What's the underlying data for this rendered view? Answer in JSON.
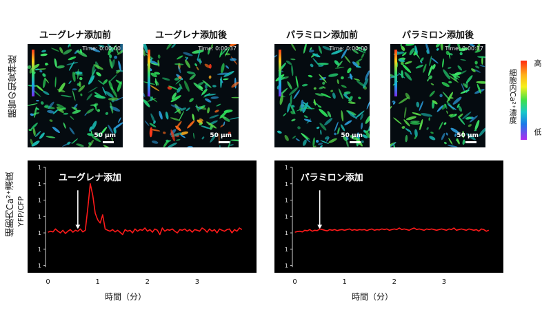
{
  "row_label_neurons": "腸管の知覚神経",
  "columns": [
    {
      "title": "ユーグレナ添加前",
      "time": "Time: 0:00:00",
      "scale": "50 µm"
    },
    {
      "title": "ユーグレナ添加後",
      "time": "Time: 0:00:37",
      "scale": "50 µm"
    },
    {
      "title": "パラミロン添加前",
      "time": "Time: 0:00:00",
      "scale": "50 µm"
    },
    {
      "title": "パラミロン添加後",
      "time": "Time: 0:00:37",
      "scale": "50 µm"
    }
  ],
  "colorbar": {
    "label": "細胞内Ca²⁺濃度",
    "high": "高",
    "low": "低"
  },
  "y_axis": {
    "main": "細胞内Ca²⁺濃度",
    "sub": "YFP/CFP"
  },
  "chart_data": [
    {
      "type": "line",
      "annotation": "ユーグレナ添加",
      "annotation_x": 0.6,
      "xlabel": "時間（分）",
      "x_ticks": [
        "0",
        "1",
        "2",
        "3"
      ],
      "y_ticks": [
        "1",
        "1",
        "1",
        "1",
        "1",
        "1",
        "1",
        "1"
      ],
      "xlim": [
        -0.05,
        4.0
      ],
      "ylim": [
        -0.05,
        3.0
      ],
      "series": [
        {
          "color": "#ff1a1a",
          "x": [
            0.0,
            0.05,
            0.1,
            0.15,
            0.2,
            0.25,
            0.3,
            0.35,
            0.4,
            0.45,
            0.5,
            0.55,
            0.6,
            0.65,
            0.7,
            0.75,
            0.8,
            0.85,
            0.9,
            0.95,
            1.0,
            1.05,
            1.1,
            1.15,
            1.2,
            1.25,
            1.3,
            1.35,
            1.4,
            1.45,
            1.5,
            1.55,
            1.6,
            1.65,
            1.7,
            1.75,
            1.8,
            1.85,
            1.9,
            1.95,
            2.0,
            2.05,
            2.1,
            2.15,
            2.2,
            2.25,
            2.3,
            2.35,
            2.4,
            2.45,
            2.5,
            2.55,
            2.6,
            2.65,
            2.7,
            2.75,
            2.8,
            2.85,
            2.9,
            2.95,
            3.0,
            3.05,
            3.1,
            3.15,
            3.2,
            3.25,
            3.3,
            3.35,
            3.4,
            3.45,
            3.5,
            3.55,
            3.6,
            3.65,
            3.7,
            3.75,
            3.8,
            3.85,
            3.9
          ],
          "y": [
            1.02,
            1.05,
            1.03,
            1.12,
            1.05,
            1.0,
            1.08,
            0.98,
            1.05,
            1.1,
            1.02,
            1.08,
            1.05,
            1.12,
            1.03,
            1.08,
            1.75,
            2.5,
            2.15,
            1.6,
            1.4,
            1.3,
            1.55,
            1.12,
            1.08,
            1.05,
            1.1,
            1.03,
            1.08,
            1.02,
            0.95,
            1.1,
            1.05,
            1.08,
            1.0,
            1.12,
            1.05,
            1.1,
            1.08,
            1.15,
            1.05,
            1.1,
            1.02,
            1.12,
            1.08,
            0.95,
            1.15,
            1.05,
            1.1,
            1.08,
            1.12,
            1.05,
            1.0,
            1.1,
            1.08,
            1.12,
            1.05,
            1.1,
            1.02,
            1.1,
            1.08,
            1.05,
            1.15,
            1.1,
            1.02,
            1.12,
            1.05,
            1.1,
            1.0,
            1.12,
            1.08,
            1.05,
            1.1,
            1.12,
            1.0,
            1.1,
            1.05,
            1.15,
            1.1
          ]
        }
      ]
    },
    {
      "type": "line",
      "annotation": "パラミロン添加",
      "annotation_x": 0.5,
      "xlabel": "時間（分）",
      "x_ticks": [
        "0",
        "1",
        "2",
        "3"
      ],
      "y_ticks": [
        "1",
        "1",
        "1",
        "1",
        "1",
        "1",
        "1",
        "1"
      ],
      "xlim": [
        -0.05,
        4.0
      ],
      "ylim": [
        -0.05,
        3.0
      ],
      "series": [
        {
          "color": "#ff1a1a",
          "x": [
            0.0,
            0.05,
            0.1,
            0.15,
            0.2,
            0.25,
            0.3,
            0.35,
            0.4,
            0.45,
            0.5,
            0.55,
            0.6,
            0.65,
            0.7,
            0.75,
            0.8,
            0.85,
            0.9,
            0.95,
            1.0,
            1.05,
            1.1,
            1.15,
            1.2,
            1.25,
            1.3,
            1.35,
            1.4,
            1.45,
            1.5,
            1.55,
            1.6,
            1.65,
            1.7,
            1.75,
            1.8,
            1.85,
            1.9,
            1.95,
            2.0,
            2.05,
            2.1,
            2.15,
            2.2,
            2.25,
            2.3,
            2.35,
            2.4,
            2.45,
            2.5,
            2.55,
            2.6,
            2.65,
            2.7,
            2.75,
            2.8,
            2.85,
            2.9,
            2.95,
            3.0,
            3.05,
            3.1,
            3.15,
            3.2,
            3.25,
            3.3,
            3.35,
            3.4,
            3.45,
            3.5,
            3.55,
            3.6,
            3.65,
            3.7,
            3.75,
            3.8,
            3.85,
            3.9
          ],
          "y": [
            1.02,
            1.04,
            1.05,
            1.03,
            1.08,
            1.06,
            1.1,
            1.05,
            1.08,
            1.07,
            1.12,
            1.1,
            1.08,
            1.06,
            1.1,
            1.08,
            1.1,
            1.07,
            1.09,
            1.1,
            1.08,
            1.1,
            1.12,
            1.08,
            1.1,
            1.08,
            1.1,
            1.09,
            1.1,
            1.07,
            1.1,
            1.12,
            1.08,
            1.1,
            1.09,
            1.12,
            1.1,
            1.12,
            1.08,
            1.1,
            1.12,
            1.1,
            1.15,
            1.1,
            1.12,
            1.1,
            1.08,
            1.12,
            1.15,
            1.1,
            1.12,
            1.1,
            1.08,
            1.12,
            1.1,
            1.12,
            1.1,
            1.08,
            1.1,
            1.12,
            1.1,
            1.08,
            1.12,
            1.1,
            1.15,
            1.08,
            1.1,
            1.12,
            1.1,
            1.08,
            1.12,
            1.1,
            1.08,
            1.1,
            1.05,
            1.12,
            1.1,
            1.05,
            1.08
          ]
        }
      ]
    }
  ]
}
